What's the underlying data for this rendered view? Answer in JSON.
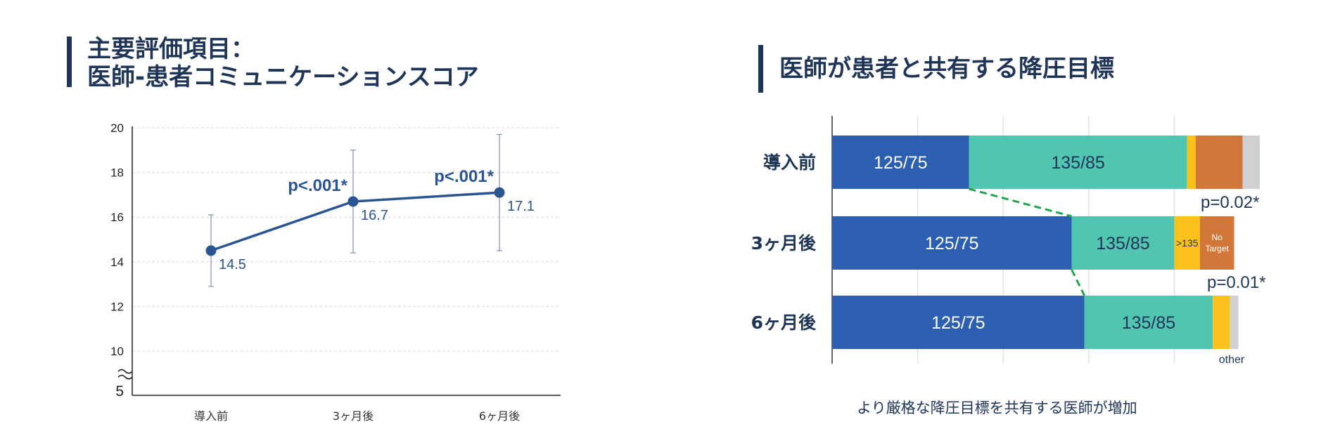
{
  "left_panel": {
    "title_line1": "主要評価項目：",
    "title_line2": "医師-患者コミュニケーションスコア"
  },
  "right_panel": {
    "title": "医師が患者と共有する降圧目標",
    "caption": "より厳格な降圧目標を共有する医師が増加"
  },
  "colors": {
    "title": "#1f3557",
    "line": "#2b5592",
    "seg_125_75": "#2d5fb0",
    "seg_135_85": "#52c5b0",
    "seg_gt135": "#fcc21b",
    "seg_no_target": "#d2773a",
    "seg_other": "#d0d0d0",
    "connector": "#1ea84a"
  },
  "chart_data": [
    {
      "type": "line",
      "title": "",
      "xlabel": "",
      "ylabel": "",
      "categories": [
        "導入前",
        "3ヶ月後",
        "6ヶ月後"
      ],
      "series": [
        {
          "values": [
            14.5,
            16.7,
            17.1
          ],
          "error_low": [
            12.9,
            14.4,
            14.5
          ],
          "error_high": [
            16.1,
            19.0,
            19.7
          ]
        }
      ],
      "value_labels": [
        "14.5",
        "16.7",
        "17.1"
      ],
      "annotations": [
        "",
        "p<.001*",
        "p<.001*"
      ],
      "yticks": [
        20,
        18,
        16,
        14,
        12,
        10
      ],
      "y_break_label": "5",
      "ylim": [
        9,
        20
      ],
      "grid": true
    },
    {
      "type": "bar",
      "orientation": "horizontal",
      "stacked": true,
      "categories": [
        "導入前",
        "3ヶ月後",
        "6ヶ月後"
      ],
      "segment_names": [
        "125/75",
        "135/85",
        ">135",
        "No Target",
        "other"
      ],
      "series": [
        {
          "name": "125/75",
          "values": [
            32,
            56,
            59
          ],
          "label": "125/75"
        },
        {
          "name": "135/85",
          "values": [
            51,
            24,
            30
          ],
          "label": "135/85"
        },
        {
          "name": ">135",
          "values": [
            2,
            6,
            4
          ],
          "label": ">135"
        },
        {
          "name": "No Target",
          "values": [
            11,
            8,
            0
          ],
          "label": "No Target"
        },
        {
          "name": "other",
          "values": [
            4,
            0,
            2
          ],
          "label": ""
        }
      ],
      "labeled_segments": [
        [
          "125/75",
          "135/85",
          "",
          "",
          ""
        ],
        [
          "125/75",
          "135/85",
          ">135",
          "No Target",
          ""
        ],
        [
          "125/75",
          "135/85",
          "",
          "",
          ""
        ]
      ],
      "p_values": [
        "p=0.02*",
        "p=0.01*"
      ],
      "other_label": "other",
      "xlim": [
        0,
        100
      ],
      "grid": true
    }
  ]
}
